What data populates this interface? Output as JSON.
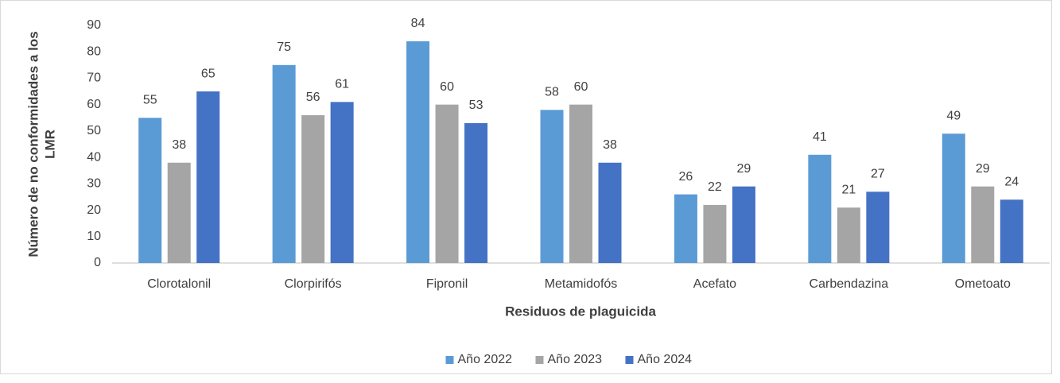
{
  "chart_data": {
    "type": "bar",
    "x_label": "Residuos de plaguicida",
    "y_label": "Número de no conformidades a los LMR",
    "categories": [
      "Clorotalonil",
      "Clorpirifós",
      "Fipronil",
      "Metamidofós",
      "Acefato",
      "Carbendazina",
      "Ometoato"
    ],
    "series": [
      {
        "name": "Año 2022",
        "color": "#5b9bd5",
        "values": [
          55,
          75,
          84,
          58,
          26,
          41,
          49
        ]
      },
      {
        "name": "Año 2023",
        "color": "#a5a5a5",
        "values": [
          38,
          56,
          60,
          60,
          22,
          21,
          29
        ]
      },
      {
        "name": "Año 2024",
        "color": "#4472c4",
        "values": [
          65,
          61,
          53,
          38,
          29,
          27,
          24
        ]
      }
    ],
    "ylim": [
      0,
      90
    ],
    "yticks": [
      0,
      10,
      20,
      30,
      40,
      50,
      60,
      70,
      80,
      90
    ],
    "grid": false,
    "legend": "bottom"
  }
}
